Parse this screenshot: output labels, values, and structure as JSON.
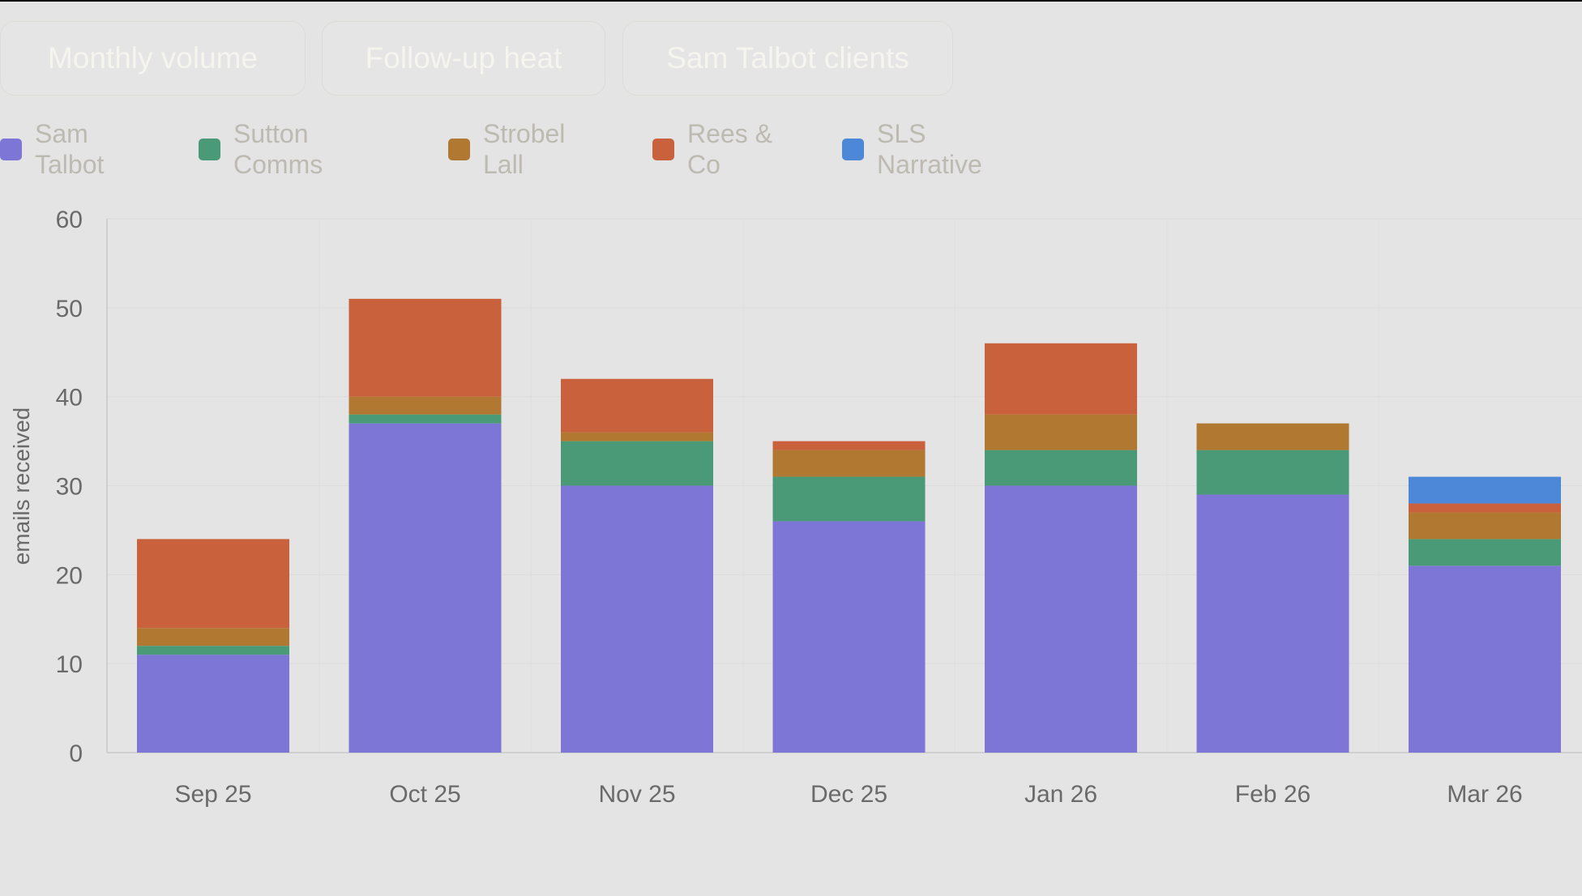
{
  "tabs": [
    {
      "label": "Monthly volume"
    },
    {
      "label": "Follow-up heat"
    },
    {
      "label": "Sam Talbot clients"
    }
  ],
  "chart_data": {
    "type": "bar",
    "stacked": true,
    "title": "",
    "xlabel": "",
    "ylabel": "emails received",
    "ylim": [
      0,
      60
    ],
    "yticks": [
      0,
      10,
      20,
      30,
      40,
      50,
      60
    ],
    "grid": true,
    "legend_position": "top-left",
    "categories": [
      "Sep 25",
      "Oct 25",
      "Nov 25",
      "Dec 25",
      "Jan 26",
      "Feb 26",
      "Mar 26"
    ],
    "series": [
      {
        "name": "Sam Talbot",
        "color": "#7d76d6",
        "values": [
          11,
          37,
          30,
          26,
          30,
          29,
          21
        ]
      },
      {
        "name": "Sutton Comms",
        "color": "#4a9a78",
        "values": [
          1,
          1,
          5,
          5,
          4,
          5,
          3
        ]
      },
      {
        "name": "Strobel Lall",
        "color": "#b07830",
        "values": [
          2,
          2,
          1,
          3,
          4,
          3,
          3
        ]
      },
      {
        "name": "Rees & Co",
        "color": "#c9623c",
        "values": [
          10,
          11,
          6,
          1,
          8,
          0,
          1
        ]
      },
      {
        "name": "SLS Narrative",
        "color": "#4d87d8",
        "values": [
          0,
          0,
          0,
          0,
          0,
          0,
          3
        ]
      }
    ]
  }
}
